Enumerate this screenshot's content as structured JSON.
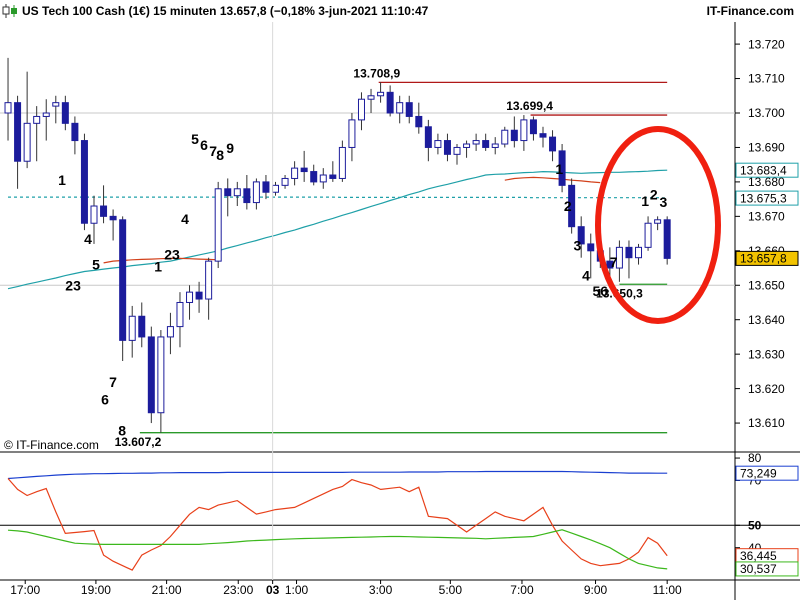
{
  "header": {
    "title": "US Tech 100 Cash (1€) 15 minuten 13.657,8 (−0,18% 3-jun-2021 11:10:47",
    "brand": "IT-Finance.com"
  },
  "chart_data": [
    {
      "type": "candlestick",
      "watermark": "© IT-Finance.com",
      "color": "#1c1c9c",
      "open": [
        13.7,
        13.703,
        13.686,
        13.697,
        13.699,
        13.702,
        13.703,
        13.697,
        13.692,
        13.668,
        13.673,
        13.67,
        13.669,
        13.634,
        13.641,
        13.635,
        13.613,
        13.635,
        13.638,
        13.645,
        13.648,
        13.646,
        13.657,
        13.678,
        13.676,
        13.678,
        13.674,
        13.68,
        13.677,
        13.679,
        13.681,
        13.684,
        13.683,
        13.68,
        13.682,
        13.681,
        13.69,
        13.698,
        13.704,
        13.705,
        13.706,
        13.7,
        13.703,
        13.699,
        13.696,
        13.69,
        13.692,
        13.688,
        13.69,
        13.691,
        13.692,
        13.69,
        13.691,
        13.695,
        13.692,
        13.698,
        13.694,
        13.693,
        13.689,
        13.679,
        13.667,
        13.662,
        13.66,
        13.657,
        13.655,
        13.661,
        13.658,
        13.661,
        13.668,
        13.669
      ],
      "high": [
        13.716,
        13.705,
        13.712,
        13.702,
        13.704,
        13.705,
        13.705,
        13.699,
        13.694,
        13.676,
        13.679,
        13.672,
        13.67,
        13.644,
        13.645,
        13.638,
        13.637,
        13.642,
        13.648,
        13.65,
        13.651,
        13.658,
        13.68,
        13.681,
        13.68,
        13.682,
        13.681,
        13.682,
        13.68,
        13.682,
        13.686,
        13.689,
        13.685,
        13.684,
        13.686,
        13.692,
        13.7,
        13.706,
        13.707,
        13.7089,
        13.708,
        13.705,
        13.705,
        13.703,
        13.698,
        13.694,
        13.694,
        13.691,
        13.692,
        13.694,
        13.694,
        13.693,
        13.696,
        13.699,
        13.6994,
        13.699,
        13.696,
        13.695,
        13.691,
        13.681,
        13.67,
        13.665,
        13.664,
        13.661,
        13.663,
        13.663,
        13.662,
        13.67,
        13.67,
        13.67
      ],
      "low": [
        13.692,
        13.678,
        13.684,
        13.686,
        13.692,
        13.697,
        13.695,
        13.688,
        13.666,
        13.662,
        13.668,
        13.663,
        13.628,
        13.629,
        13.632,
        13.61,
        13.6072,
        13.63,
        13.632,
        13.64,
        13.642,
        13.64,
        13.655,
        13.67,
        13.673,
        13.672,
        13.672,
        13.675,
        13.676,
        13.678,
        13.679,
        13.68,
        13.679,
        13.678,
        13.68,
        13.68,
        13.686,
        13.695,
        13.7,
        13.703,
        13.699,
        13.697,
        13.697,
        13.694,
        13.686,
        13.688,
        13.686,
        13.685,
        13.687,
        13.689,
        13.689,
        13.688,
        13.69,
        13.69,
        13.689,
        13.692,
        13.69,
        13.686,
        13.677,
        13.665,
        13.658,
        13.652,
        13.655,
        13.6503,
        13.651,
        13.652,
        13.656,
        13.66,
        13.666,
        13.656
      ],
      "close": [
        13.703,
        13.686,
        13.697,
        13.699,
        13.7,
        13.703,
        13.697,
        13.692,
        13.668,
        13.673,
        13.67,
        13.669,
        13.634,
        13.641,
        13.635,
        13.613,
        13.635,
        13.638,
        13.645,
        13.648,
        13.646,
        13.657,
        13.678,
        13.676,
        13.678,
        13.674,
        13.68,
        13.677,
        13.679,
        13.681,
        13.684,
        13.683,
        13.68,
        13.682,
        13.681,
        13.69,
        13.698,
        13.704,
        13.705,
        13.706,
        13.7,
        13.703,
        13.699,
        13.696,
        13.69,
        13.692,
        13.688,
        13.69,
        13.691,
        13.692,
        13.69,
        13.691,
        13.695,
        13.692,
        13.698,
        13.694,
        13.693,
        13.689,
        13.679,
        13.667,
        13.662,
        13.66,
        13.657,
        13.655,
        13.661,
        13.658,
        13.661,
        13.668,
        13.669,
        13.6578
      ],
      "last_label": "13.657,8",
      "last_label_color": "#f2c300",
      "xlim": [
        -0.84,
        76.1
      ],
      "ylim": [
        13.6016,
        13.7328
      ],
      "yticks": [
        {
          "value": 13.61,
          "label": "13.610"
        },
        {
          "value": 13.62,
          "label": "13.620"
        },
        {
          "value": 13.63,
          "label": "13.630"
        },
        {
          "value": 13.64,
          "label": "13.640"
        },
        {
          "value": 13.65,
          "label": "13.650"
        },
        {
          "value": 13.66,
          "label": "13.660"
        },
        {
          "value": 13.67,
          "label": "13.670"
        },
        {
          "value": 13.68,
          "label": "13.680"
        },
        {
          "value": 13.69,
          "label": "13.690"
        },
        {
          "value": 13.7,
          "label": "13.700"
        },
        {
          "value": 13.71,
          "label": "13.710"
        },
        {
          "value": 13.72,
          "label": "13.720"
        }
      ],
      "reference_lines": [
        13.7,
        13.65
      ],
      "series": [
        {
          "color": "#1fa0a8",
          "last_label": "13.683,4",
          "values": [
            13.649,
            13.6496,
            13.6503,
            13.6509,
            13.6515,
            13.6521,
            13.6528,
            13.6534,
            13.654,
            13.6543,
            13.6547,
            13.655,
            13.6553,
            13.6557,
            13.656,
            13.6563,
            13.6567,
            13.657,
            13.6576,
            13.6582,
            13.6588,
            13.6594,
            13.66,
            13.6608,
            13.6615,
            13.6623,
            13.663,
            13.6638,
            13.6645,
            13.6653,
            13.666,
            13.6669,
            13.6677,
            13.6686,
            13.6694,
            13.6703,
            13.6711,
            13.672,
            13.6729,
            13.6737,
            13.6746,
            13.6754,
            13.6763,
            13.6771,
            13.678,
            13.6787,
            13.6793,
            13.68,
            13.6807,
            13.6813,
            13.682,
            13.6822,
            13.6823,
            13.6825,
            13.6827,
            13.6828,
            13.683,
            13.6829,
            13.6828,
            13.6826,
            13.6825,
            13.6826,
            13.6827,
            13.6828,
            13.6828,
            13.6829,
            13.683,
            13.6831,
            13.6833,
            13.6834
          ]
        },
        {
          "color": "#d2401a",
          "values": [
            null,
            null,
            null,
            null,
            null,
            null,
            null,
            null,
            null,
            null,
            13.6565,
            13.657,
            13.6572,
            13.6574,
            13.6575,
            13.6576,
            13.6577,
            13.6578,
            13.6578,
            13.6577,
            13.6576,
            13.6575,
            13.6574,
            null,
            null,
            null,
            null,
            null,
            null,
            null,
            null,
            null,
            null,
            null,
            null,
            null,
            null,
            null,
            null,
            null,
            null,
            null,
            null,
            null,
            null,
            null,
            null,
            null,
            null,
            null,
            null,
            null,
            13.6805,
            13.681,
            13.6812,
            13.6813,
            13.6812,
            13.681,
            13.6808,
            13.6805,
            13.6803,
            13.68,
            13.6798,
            null,
            null,
            null,
            null,
            null,
            null,
            null
          ]
        },
        {
          "color": "#1fa0a8",
          "dashed": true,
          "last_label": "13.675,3",
          "values": [
            13.6756,
            13.6756,
            13.6756,
            13.6756,
            13.6756,
            13.6756,
            13.6756,
            13.6756,
            13.6756,
            13.6756,
            13.6756,
            13.6756,
            13.6756,
            13.6756,
            13.6756,
            13.6756,
            13.6756,
            13.6756,
            13.6756,
            13.6756,
            13.6756,
            13.6756,
            13.6756,
            13.6756,
            13.6756,
            13.6756,
            13.6756,
            13.6756,
            13.6756,
            13.6756,
            13.6756,
            13.6756,
            13.6756,
            13.6756,
            13.6756,
            13.6755,
            13.6755,
            13.6755,
            13.6755,
            13.6755,
            13.6755,
            13.6755,
            13.6755,
            13.6755,
            13.6755,
            13.6755,
            13.6755,
            13.6755,
            13.6755,
            13.6755,
            13.6755,
            13.6755,
            13.6755,
            13.6755,
            13.6755,
            13.6754,
            13.6754,
            13.6754,
            13.6754,
            13.6754,
            13.6754,
            13.6754,
            13.6754,
            13.6754,
            13.6754,
            13.6754,
            13.6754,
            13.6754,
            13.6754,
            13.6753
          ]
        }
      ],
      "levels": [
        {
          "value": 13.7089,
          "label": "13.708,9",
          "color": "#b01818",
          "from": 38.8,
          "to": 69,
          "label_at": 38.6,
          "label_side": "above"
        },
        {
          "value": 13.6994,
          "label": "13.699,4",
          "color": "#b01818",
          "from": 54.7,
          "to": 69,
          "label_at": 54.6,
          "label_side": "above"
        },
        {
          "value": 13.6503,
          "label": "13.650,3",
          "color": "#2a9a2a",
          "from": 64,
          "to": 69,
          "label_at": 64,
          "label_side": "below"
        },
        {
          "value": 13.6072,
          "label": "13.607,2",
          "color": "#2a9a2a",
          "from": 13.8,
          "to": 69,
          "label_at": 13.6,
          "label_side": "below"
        }
      ],
      "annotations": [
        {
          "text": "1",
          "color": "#e01010",
          "x": 5.65,
          "y": 13.6802
        },
        {
          "text": "4",
          "color": "#e01010",
          "x": 8.38,
          "y": 13.6631
        },
        {
          "text": "5",
          "color": "#e01010",
          "x": 9.21,
          "y": 13.6556
        },
        {
          "text": "23",
          "color": "#e01010",
          "x": 6.81,
          "y": 13.6495
        },
        {
          "text": "7",
          "color": "#e01010",
          "x": 10.99,
          "y": 13.6216
        },
        {
          "text": "6",
          "color": "#e01010",
          "x": 10.16,
          "y": 13.6164
        },
        {
          "text": "8",
          "color": "#e01010",
          "x": 11.94,
          "y": 13.6074
        },
        {
          "text": "1",
          "color": "#1a1ae0",
          "x": 15.71,
          "y": 13.655
        },
        {
          "text": "23",
          "color": "#1a1ae0",
          "x": 17.17,
          "y": 13.6585
        },
        {
          "text": "4",
          "color": "#1a1ae0",
          "x": 18.53,
          "y": 13.6689
        },
        {
          "text": "5",
          "color": "#1a1ae0",
          "x": 19.58,
          "y": 13.6921
        },
        {
          "text": "6",
          "color": "#1a1ae0",
          "x": 20.52,
          "y": 13.6904
        },
        {
          "text": "7",
          "color": "#1a1ae0",
          "x": 21.47,
          "y": 13.6886
        },
        {
          "text": "8",
          "color": "#1a1ae0",
          "x": 22.2,
          "y": 13.6875
        },
        {
          "text": "9",
          "color": "#1a1ae0",
          "x": 23.25,
          "y": 13.6895
        },
        {
          "text": "1",
          "color": "#e01010",
          "x": 57.7,
          "y": 13.6834
        },
        {
          "text": "2",
          "color": "#e01010",
          "x": 58.6,
          "y": 13.6727
        },
        {
          "text": "3",
          "color": "#e01010",
          "x": 59.6,
          "y": 13.6611
        },
        {
          "text": "4",
          "color": "#e01010",
          "x": 60.5,
          "y": 13.6524
        },
        {
          "text": "56",
          "color": "#e01010",
          "x": 62.0,
          "y": 13.648
        },
        {
          "text": "7",
          "color": "#e01010",
          "x": 63.4,
          "y": 13.6564
        },
        {
          "text": "1",
          "color": "#1a1ae0",
          "x": 66.7,
          "y": 13.6741
        },
        {
          "text": "2",
          "color": "#1a1ae0",
          "x": 67.6,
          "y": 13.6759
        },
        {
          "text": "3",
          "color": "#1a1ae0",
          "x": 68.6,
          "y": 13.6738
        }
      ]
    },
    {
      "type": "line",
      "xlim": [
        -0.84,
        76.1
      ],
      "ylim": [
        25.6,
        82.7
      ],
      "yticks": [
        30,
        40,
        50,
        70,
        80
      ],
      "reference_line": 50,
      "separator": 27.7,
      "xticks": [
        {
          "value": 1.8,
          "label": "17:00"
        },
        {
          "value": 9.2,
          "label": "19:00"
        },
        {
          "value": 16.6,
          "label": "21:00"
        },
        {
          "value": 24.1,
          "label": "23:00"
        },
        {
          "value": 27.7,
          "label": "03"
        },
        {
          "value": 30.2,
          "label": "1:00"
        },
        {
          "value": 39,
          "label": "3:00"
        },
        {
          "value": 46.3,
          "label": "5:00"
        },
        {
          "value": 53.8,
          "label": "7:00"
        },
        {
          "value": 61.5,
          "label": "9:00"
        },
        {
          "value": 69,
          "label": "11:00"
        }
      ],
      "series": [
        {
          "color": "#1a3fd0",
          "last_label": "73,249",
          "values": [
            70.9,
            71.2,
            71.5,
            71.8,
            72.1,
            72.4,
            72.6,
            72.8,
            72.9,
            73,
            73,
            73.1,
            73.2,
            73.2,
            73.3,
            73.3,
            73.4,
            73.4,
            73.5,
            73.5,
            73.5,
            73.5,
            73.5,
            73.6,
            73.6,
            73.6,
            73.6,
            73.6,
            73.6,
            73.6,
            73.6,
            73.6,
            73.6,
            73.6,
            73.6,
            73.6,
            73.7,
            73.7,
            73.7,
            73.7,
            73.7,
            73.7,
            73.8,
            73.8,
            73.8,
            73.8,
            73.9,
            73.9,
            73.9,
            73.9,
            74,
            74,
            74,
            74,
            74,
            74,
            74,
            74,
            74,
            73.9,
            73.8,
            73.7,
            73.6,
            73.5,
            73.4,
            73.3,
            73.3,
            73.3,
            73.25,
            73.249
          ]
        },
        {
          "color": "#e8401a",
          "last_label": "36,445",
          "values": [
            70.9,
            66,
            63.3,
            65,
            66.4,
            56,
            46.4,
            46.8,
            47.2,
            47.7,
            36.7,
            34,
            32,
            30,
            36.7,
            39,
            41,
            45,
            50,
            54.9,
            58,
            57,
            59,
            60,
            61,
            58,
            55,
            56,
            57,
            57.5,
            58,
            60,
            62,
            64,
            66,
            67.3,
            70.4,
            69,
            68,
            66,
            66.5,
            67,
            65,
            67,
            54,
            53.5,
            53,
            50,
            47,
            50,
            53,
            56,
            54,
            53,
            52,
            55,
            58,
            50,
            43,
            39,
            35,
            33,
            32,
            32.5,
            33,
            35,
            38,
            44.5,
            42,
            36.445
          ]
        },
        {
          "color": "#3cb81c",
          "last_label": "30,537",
          "values": [
            47.8,
            47.5,
            47,
            46,
            45,
            44,
            43,
            42,
            41.8,
            41.6,
            41.5,
            41.5,
            41.5,
            41.5,
            41.5,
            41.5,
            41.5,
            41.5,
            41.5,
            41.5,
            41.5,
            41.8,
            42,
            42.3,
            42.6,
            43,
            43.2,
            43.4,
            43.6,
            43.8,
            44,
            44.1,
            44.2,
            44.3,
            44.4,
            44.5,
            44.6,
            44.7,
            44.8,
            44.9,
            45,
            45,
            44.9,
            44.8,
            44.7,
            44.6,
            44.5,
            44.4,
            44.3,
            44.2,
            44,
            44.2,
            44.4,
            44.6,
            44.8,
            45,
            46,
            47,
            48,
            46.5,
            45,
            43.5,
            41.8,
            40,
            37.5,
            35,
            33,
            32,
            31,
            30.537
          ]
        }
      ]
    }
  ]
}
